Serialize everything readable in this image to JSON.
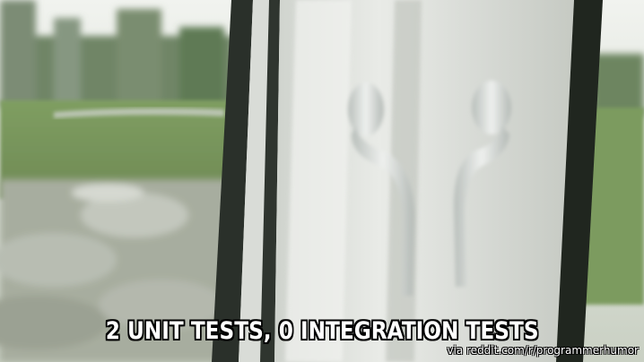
{
  "meme": {
    "caption": "2 UNIT TESTS, 0 INTEGRATION TESTS",
    "credit": "via reddit.com/r/programmerhumor"
  },
  "colors": {
    "sky": "#e9ece6",
    "grass": "#86a565",
    "frame_white": "#e6e8e4",
    "frame_dark": "#242a24",
    "handle": "#d7dcd8"
  }
}
